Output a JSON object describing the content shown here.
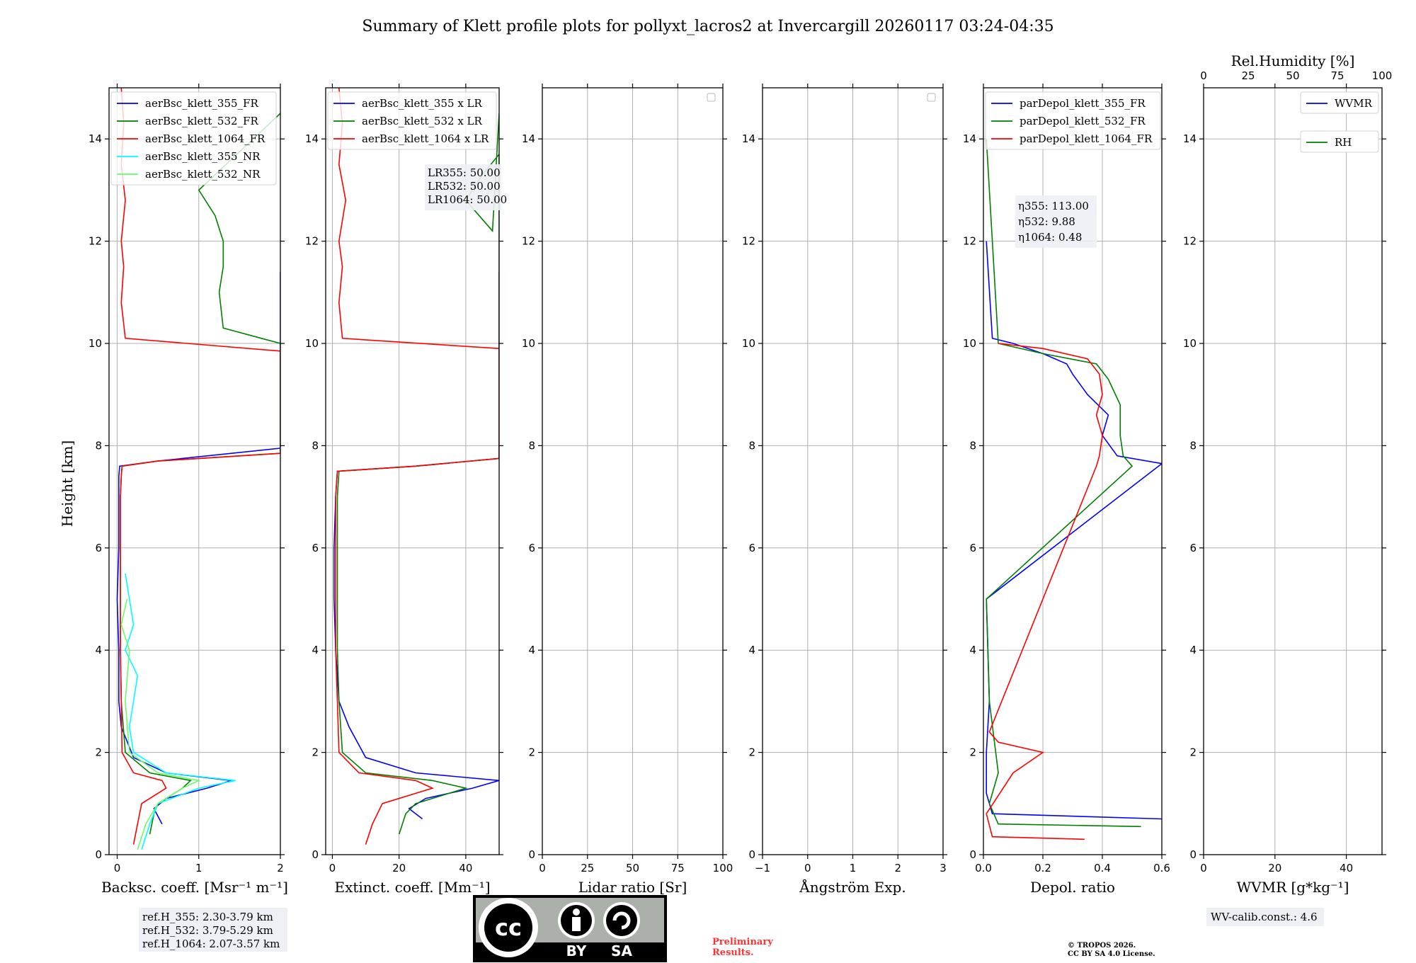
{
  "title": "Summary of Klett profile plots for pollyxt_lacros2 at Invercargill 20260117 03:24-04:35",
  "ylabel": "Height [km]",
  "yticks": [
    "0",
    "2",
    "4",
    "6",
    "8",
    "10",
    "12",
    "14"
  ],
  "colors": {
    "c355": "#0000ff",
    "c532": "#008000",
    "c1064": "#ff0000",
    "c355nr": "#00ffff",
    "c532nr": "#66ff66"
  },
  "chart_data": [
    {
      "type": "line",
      "xlabel": "Backsc. coeff. [Msr⁻¹ m⁻¹]",
      "xlim": [
        -0.1,
        2
      ],
      "ylim": [
        0,
        15
      ],
      "xticks": [
        "0",
        "1",
        "2"
      ],
      "legend": [
        "aerBsc_klett_355_FR",
        "aerBsc_klett_532_FR",
        "aerBsc_klett_1064_FR",
        "aerBsc_klett_355_NR",
        "aerBsc_klett_532_NR"
      ],
      "series": [
        {
          "name": "aerBsc_klett_355_FR",
          "x": [
            0.55,
            0.45,
            0.6,
            1.1,
            1.4,
            0.6,
            0.2,
            0.05,
            0.02,
            0.02,
            0.0,
            0.02,
            0.02,
            0.02,
            0.03,
            0.5,
            2.0,
            2.0
          ],
          "y": [
            0.6,
            0.9,
            1.1,
            1.3,
            1.45,
            1.6,
            1.9,
            2.5,
            3.0,
            4.0,
            5.0,
            6.0,
            7.0,
            7.4,
            7.6,
            7.7,
            7.95,
            11.4
          ]
        },
        {
          "name": "aerBsc_klett_532_FR",
          "x": [
            0.4,
            0.45,
            0.5,
            0.8,
            0.9,
            0.4,
            0.1,
            0.05,
            0.04,
            0.04,
            0.04,
            0.04,
            0.05,
            0.06,
            0.5,
            2.0,
            2.0,
            1.3,
            1.25,
            1.3,
            1.3,
            1.2,
            1.0,
            2.0
          ],
          "y": [
            0.4,
            0.8,
            1.0,
            1.3,
            1.45,
            1.6,
            2.0,
            3.0,
            4.0,
            5.0,
            6.0,
            7.0,
            7.4,
            7.6,
            7.7,
            7.85,
            10.0,
            10.3,
            11.0,
            11.5,
            12.0,
            12.5,
            13.0,
            14.5
          ]
        },
        {
          "name": "aerBsc_klett_1064_FR",
          "x": [
            0.2,
            0.25,
            0.3,
            0.6,
            0.55,
            0.2,
            0.06,
            0.05,
            0.04,
            0.04,
            0.04,
            0.04,
            0.05,
            0.06,
            0.5,
            2.0,
            2.0,
            0.1,
            0.05,
            0.08,
            0.05,
            0.1,
            0.05,
            0.08,
            0.05
          ],
          "y": [
            0.2,
            0.6,
            1.0,
            1.3,
            1.45,
            1.6,
            2.0,
            3.0,
            4.0,
            5.0,
            6.0,
            7.0,
            7.4,
            7.6,
            7.7,
            7.85,
            9.85,
            10.1,
            10.8,
            11.5,
            12.0,
            12.8,
            13.5,
            14.3,
            15.0
          ]
        },
        {
          "name": "aerBsc_klett_355_NR",
          "x": [
            0.3,
            0.4,
            0.5,
            1.0,
            1.45,
            0.6,
            0.2,
            0.15,
            0.25,
            0.1,
            0.2,
            0.15,
            0.1
          ],
          "y": [
            0.1,
            0.6,
            1.0,
            1.3,
            1.45,
            1.6,
            2.0,
            2.5,
            3.5,
            4.0,
            4.5,
            5.0,
            5.5
          ]
        },
        {
          "name": "aerBsc_klett_532_NR",
          "x": [
            0.25,
            0.35,
            0.5,
            0.8,
            1.0,
            0.5,
            0.15,
            0.1,
            0.15,
            0.05,
            0.12
          ],
          "y": [
            0.1,
            0.6,
            1.0,
            1.3,
            1.45,
            1.6,
            2.0,
            3.0,
            4.0,
            4.5,
            5.0
          ]
        }
      ]
    },
    {
      "type": "line",
      "xlabel": "Extinct. coeff. [Mm⁻¹]",
      "xlim": [
        -2,
        50
      ],
      "ylim": [
        0,
        15
      ],
      "xticks": [
        "0",
        "20",
        "40"
      ],
      "legend": [
        "aerBsc_klett_355 x LR",
        "aerBsc_klett_532 x LR",
        "aerBsc_klett_1064 x LR"
      ],
      "annotation": [
        "LR355: 50.00",
        "LR532: 50.00",
        "LR1064: 50.00"
      ],
      "series": [
        {
          "name": "aerBsc_klett_355 x LR",
          "x": [
            27,
            23,
            28,
            42,
            50,
            25,
            10,
            5,
            2,
            1,
            0.5,
            0.5,
            1,
            1.5,
            25,
            50,
            50
          ],
          "y": [
            0.7,
            0.9,
            1.1,
            1.3,
            1.45,
            1.6,
            1.9,
            2.5,
            3.0,
            4.0,
            5.0,
            6.0,
            7.0,
            7.5,
            7.6,
            7.75,
            11.4
          ]
        },
        {
          "name": "aerBsc_klett_532 x LR",
          "x": [
            20,
            22,
            25,
            40,
            30,
            10,
            3,
            2,
            1.5,
            1.5,
            1.5,
            1.5,
            2,
            25,
            50,
            50,
            45,
            40,
            48,
            50
          ],
          "y": [
            0.4,
            0.8,
            1.0,
            1.3,
            1.45,
            1.6,
            2.0,
            3.0,
            4.0,
            5.0,
            6.0,
            7.0,
            7.5,
            7.6,
            7.75,
            13.7,
            13.3,
            12.8,
            12.2,
            14.5
          ]
        },
        {
          "name": "aerBsc_klett_1064 x LR",
          "x": [
            10,
            12,
            15,
            30,
            25,
            8,
            2,
            1.5,
            1,
            1,
            1,
            1,
            1.5,
            25,
            50,
            50,
            3,
            2,
            3,
            2,
            4,
            2,
            3,
            2
          ],
          "y": [
            0.2,
            0.6,
            1.0,
            1.3,
            1.45,
            1.6,
            2.0,
            3.0,
            4.0,
            5.0,
            6.0,
            7.0,
            7.5,
            7.6,
            7.75,
            9.9,
            10.1,
            10.8,
            11.5,
            12.0,
            12.8,
            13.5,
            14.3,
            15.0
          ]
        }
      ]
    },
    {
      "type": "line",
      "xlabel": "Lidar ratio [Sr]",
      "xlim": [
        0,
        100
      ],
      "ylim": [
        0,
        15
      ],
      "xticks": [
        "0",
        "25",
        "50",
        "75",
        "100"
      ],
      "series": []
    },
    {
      "type": "line",
      "xlabel": "Ångström Exp.",
      "xlim": [
        -1,
        3
      ],
      "ylim": [
        0,
        15
      ],
      "xticks": [
        "−1",
        "0",
        "1",
        "2",
        "3"
      ],
      "series": []
    },
    {
      "type": "line",
      "xlabel": "Depol. ratio",
      "xlim": [
        0,
        0.6
      ],
      "ylim": [
        0,
        15
      ],
      "xticks": [
        "0.0",
        "0.2",
        "0.4",
        "0.6"
      ],
      "legend": [
        "parDepol_klett_355_FR",
        "parDepol_klett_532_FR",
        "parDepol_klett_1064_FR"
      ],
      "annotation": [
        "η355: 113.00",
        "η532: 9.88",
        "η1064: 0.48"
      ],
      "series": [
        {
          "name": "parDepol_klett_355_FR",
          "x": [
            0.6,
            0.03,
            0.01,
            0.01,
            0.02,
            0.01,
            0.6,
            0.45,
            0.4,
            0.42,
            0.35,
            0.3,
            0.28,
            0.2,
            0.1,
            0.03,
            0.01
          ],
          "y": [
            0.7,
            0.8,
            1.2,
            2.0,
            3.0,
            5.0,
            7.65,
            7.8,
            8.2,
            8.6,
            9.0,
            9.4,
            9.6,
            9.8,
            10.0,
            10.1,
            12.0
          ]
        },
        {
          "name": "parDepol_klett_532_FR",
          "x": [
            0.53,
            0.05,
            0.02,
            0.05,
            0.02,
            0.01,
            0.5,
            0.47,
            0.46,
            0.46,
            0.42,
            0.38,
            0.2,
            0.05,
            0.01
          ],
          "y": [
            0.55,
            0.6,
            1.0,
            1.6,
            3.0,
            5.0,
            7.6,
            7.8,
            8.2,
            8.8,
            9.3,
            9.6,
            9.8,
            10.0,
            14.0
          ]
        },
        {
          "name": "parDepol_klett_1064_FR",
          "x": [
            0.34,
            0.03,
            0.01,
            0.1,
            0.2,
            0.05,
            0.02,
            0.38,
            0.39,
            0.4,
            0.38,
            0.4,
            0.39,
            0.35,
            0.2,
            0.05
          ],
          "y": [
            0.3,
            0.35,
            0.8,
            1.6,
            2.0,
            2.2,
            2.4,
            7.6,
            7.8,
            8.2,
            8.6,
            9.0,
            9.4,
            9.7,
            9.9,
            10.0
          ]
        }
      ]
    },
    {
      "type": "line",
      "xlabel": "WVMR [g*kg⁻¹]",
      "xlim": [
        0,
        50
      ],
      "ylim": [
        0,
        15
      ],
      "xticks": [
        "0",
        "20",
        "40"
      ],
      "x2label": "Rel.Humidity [%]",
      "x2ticks": [
        "0",
        "25",
        "50",
        "75",
        "100"
      ],
      "legend": [
        "WVMR",
        "RH"
      ],
      "series": []
    }
  ],
  "notes": {
    "refh": [
      "ref.H_355: 2.30-3.79 km",
      "ref.H_532: 3.79-5.29 km",
      "ref.H_1064: 2.07-3.57 km"
    ],
    "preliminary": [
      "Preliminary",
      "Results."
    ],
    "copyright": [
      "© TROPOS 2026.",
      "CC BY SA 4.0 License."
    ],
    "wvcalib": "WV-calib.const.: 4.6",
    "cc": {
      "cc": "cc",
      "by": "BY",
      "sa": "SA"
    }
  }
}
